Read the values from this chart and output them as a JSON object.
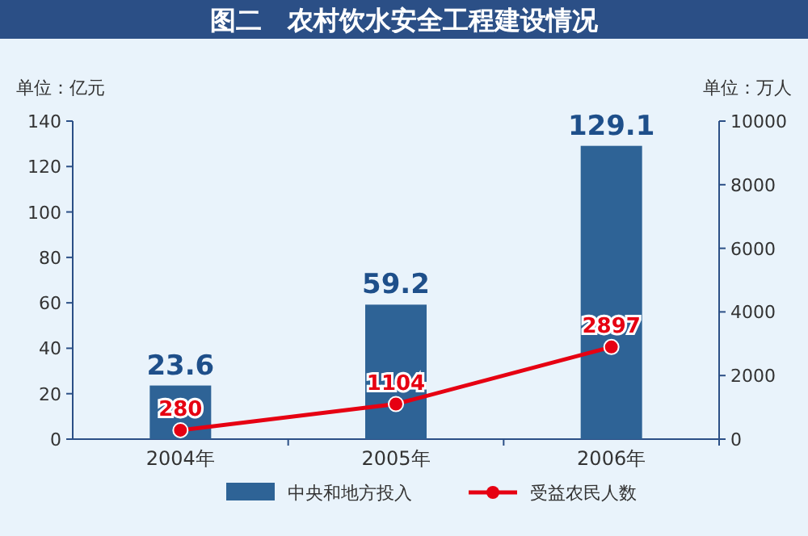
{
  "chart_data": {
    "type": "bar",
    "title": "图二　农村饮水安全工程建设情况",
    "ylabel": "单位：亿元",
    "y2label": "单位：万人",
    "categories": [
      "2004年",
      "2005年",
      "2006年"
    ],
    "series": [
      {
        "name": "中央和地方投入",
        "color": "#2e6396",
        "values": [
          23.6,
          59.2,
          129.1
        ]
      },
      {
        "name": "受益农民人数",
        "type": "line",
        "axis": "y2",
        "color": "#e60012",
        "values": [
          280,
          1104,
          2897
        ]
      }
    ],
    "ylim": [
      0,
      140
    ],
    "yticks": [
      0,
      20,
      40,
      60,
      80,
      100,
      120,
      140
    ],
    "y2lim": [
      0,
      10000
    ],
    "y2ticks": [
      0,
      2000,
      4000,
      6000,
      8000,
      10000
    ],
    "marker": "circle",
    "line_style": "solid",
    "data_labels": true,
    "legend": "bottom",
    "grid": false
  }
}
